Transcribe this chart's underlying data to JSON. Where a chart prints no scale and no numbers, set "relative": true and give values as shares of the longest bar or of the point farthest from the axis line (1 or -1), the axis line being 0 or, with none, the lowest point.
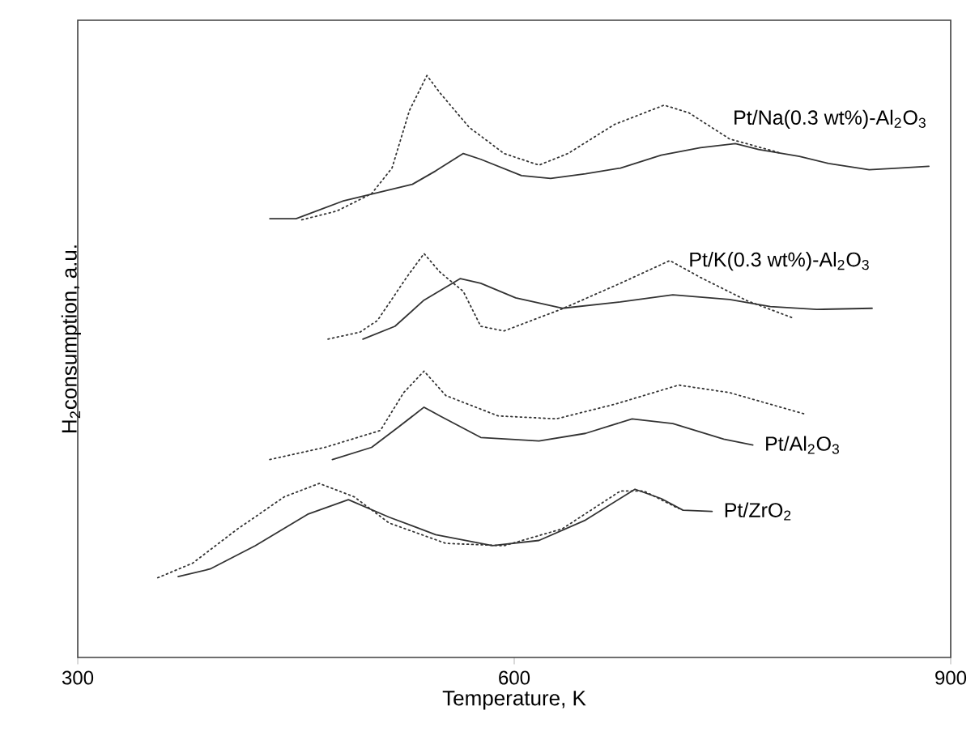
{
  "chart_data": {
    "type": "line",
    "relative": true,
    "xlabel": "Temperature, K",
    "ylabel": "H$_{2}$consumption, a.u.",
    "xlim": [
      300,
      900
    ],
    "xticks": [
      300,
      600,
      900
    ],
    "grid": false,
    "marker": "none",
    "series": [
      {
        "name": "Pt/Na(0.3 wt%)-Al$_{2}$O$_{3}$",
        "color": "#333333",
        "line_style": "solid",
        "x": [
          432,
          450,
          482,
          530,
          546,
          565,
          577,
          605,
          625,
          649,
          673,
          701,
          728,
          752,
          768,
          796,
          816,
          844,
          864,
          885
        ],
        "values": [
          0.754,
          0.754,
          0.784,
          0.813,
          0.836,
          0.866,
          0.856,
          0.828,
          0.823,
          0.831,
          0.841,
          0.863,
          0.876,
          0.883,
          0.873,
          0.861,
          0.849,
          0.838,
          0.841,
          0.844
        ]
      },
      {
        "color": "#333333",
        "line_style": "dotted",
        "x": [
          454,
          478,
          502,
          516,
          528,
          540,
          549,
          569,
          593,
          617,
          637,
          669,
          703,
          720,
          748,
          784
        ],
        "values": [
          0.752,
          0.767,
          0.797,
          0.841,
          0.94,
          1.0,
          0.97,
          0.911,
          0.866,
          0.846,
          0.866,
          0.916,
          0.949,
          0.936,
          0.891,
          0.866
        ]
      },
      {
        "name": "Pt/K(0.3 wt%)-Al$_{2}$O$_{3}$",
        "color": "#333333",
        "line_style": "solid",
        "x": [
          496,
          518,
          538,
          563,
          577,
          601,
          633,
          673,
          709,
          748,
          776,
          808,
          846
        ],
        "values": [
          0.547,
          0.569,
          0.614,
          0.651,
          0.643,
          0.618,
          0.6,
          0.611,
          0.623,
          0.615,
          0.603,
          0.598,
          0.6
        ]
      },
      {
        "color": "#333333",
        "line_style": "dotted",
        "x": [
          472,
          494,
          506,
          526,
          538,
          549,
          565,
          577,
          593,
          633,
          673,
          707,
          728,
          760,
          792
        ],
        "values": [
          0.547,
          0.559,
          0.579,
          0.653,
          0.694,
          0.662,
          0.629,
          0.569,
          0.561,
          0.599,
          0.643,
          0.682,
          0.653,
          0.613,
          0.583
        ]
      },
      {
        "name": "Pt/Al$_{2}$O$_{3}$",
        "color": "#333333",
        "line_style": "solid",
        "x": [
          475,
          502,
          520,
          538,
          549,
          577,
          617,
          649,
          681,
          709,
          744,
          764
        ],
        "values": [
          0.34,
          0.361,
          0.395,
          0.43,
          0.415,
          0.378,
          0.372,
          0.385,
          0.41,
          0.402,
          0.375,
          0.365
        ]
      },
      {
        "color": "#333333",
        "line_style": "dotted",
        "x": [
          432,
          470,
          508,
          524,
          538,
          553,
          589,
          629,
          669,
          713,
          748,
          800
        ],
        "values": [
          0.34,
          0.361,
          0.39,
          0.455,
          0.492,
          0.45,
          0.415,
          0.41,
          0.435,
          0.468,
          0.455,
          0.418
        ]
      },
      {
        "name": "Pt/ZrO$_{2}$",
        "color": "#333333",
        "line_style": "solid",
        "x": [
          369,
          391,
          422,
          458,
          486,
          514,
          546,
          585,
          617,
          649,
          683,
          701,
          716,
          736
        ],
        "values": [
          0.139,
          0.152,
          0.192,
          0.246,
          0.271,
          0.241,
          0.211,
          0.192,
          0.201,
          0.236,
          0.289,
          0.273,
          0.253,
          0.251
        ]
      },
      {
        "color": "#333333",
        "line_style": "dotted",
        "x": [
          355,
          379,
          410,
          442,
          466,
          490,
          514,
          553,
          593,
          633,
          673,
          689,
          713
        ],
        "values": [
          0.137,
          0.162,
          0.221,
          0.276,
          0.299,
          0.276,
          0.231,
          0.196,
          0.192,
          0.221,
          0.286,
          0.286,
          0.256
        ]
      }
    ]
  }
}
